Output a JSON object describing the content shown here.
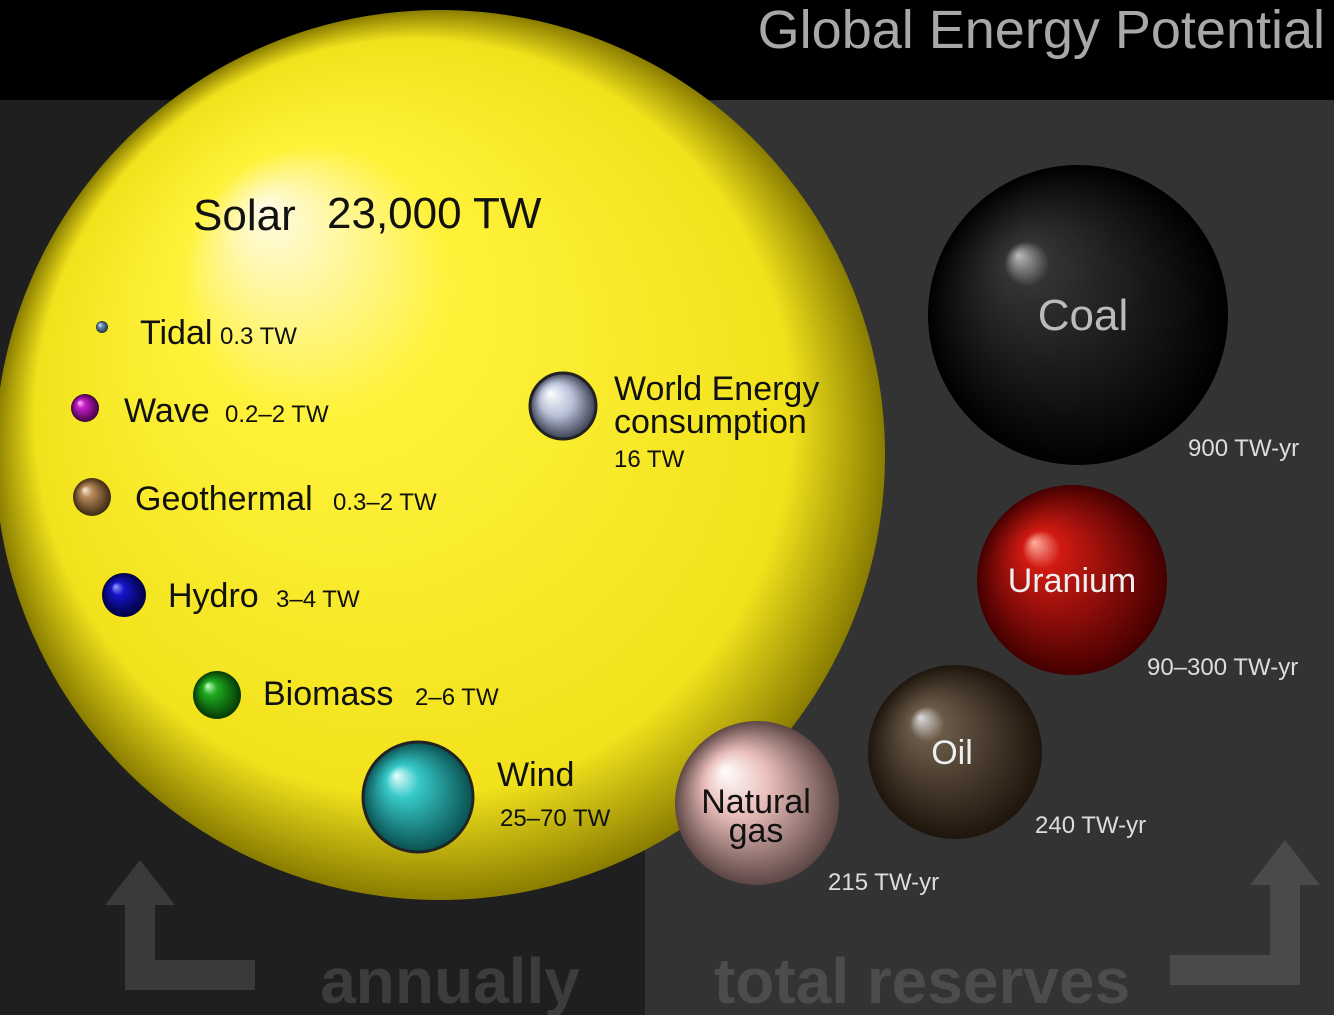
{
  "title": "Global Energy Potential",
  "renewables": {
    "caption": "annually",
    "items": [
      {
        "name": "Solar",
        "value": "23,000 TW"
      },
      {
        "name": "Tidal",
        "value": "0.3 TW"
      },
      {
        "name": "Wave",
        "value": "0.2–2 TW"
      },
      {
        "name": "Geothermal",
        "value": "0.3–2 TW"
      },
      {
        "name": "Hydro",
        "value": "3–4 TW"
      },
      {
        "name": "Biomass",
        "value": "2–6 TW"
      },
      {
        "name": "Wind",
        "value": "25–70 TW"
      }
    ]
  },
  "consumption": {
    "name_lines": [
      "World Energy",
      "consumption"
    ],
    "value": "16 TW"
  },
  "reserves": {
    "caption": "total reserves",
    "items": [
      {
        "name_lines": [
          "Coal"
        ],
        "value": "900 TW-yr"
      },
      {
        "name_lines": [
          "Uranium"
        ],
        "value": "90–300 TW-yr"
      },
      {
        "name_lines": [
          "Oil"
        ],
        "value": "240 TW-yr"
      },
      {
        "name_lines": [
          "Natural",
          "gas"
        ],
        "value": "215 TW-yr"
      }
    ]
  }
}
